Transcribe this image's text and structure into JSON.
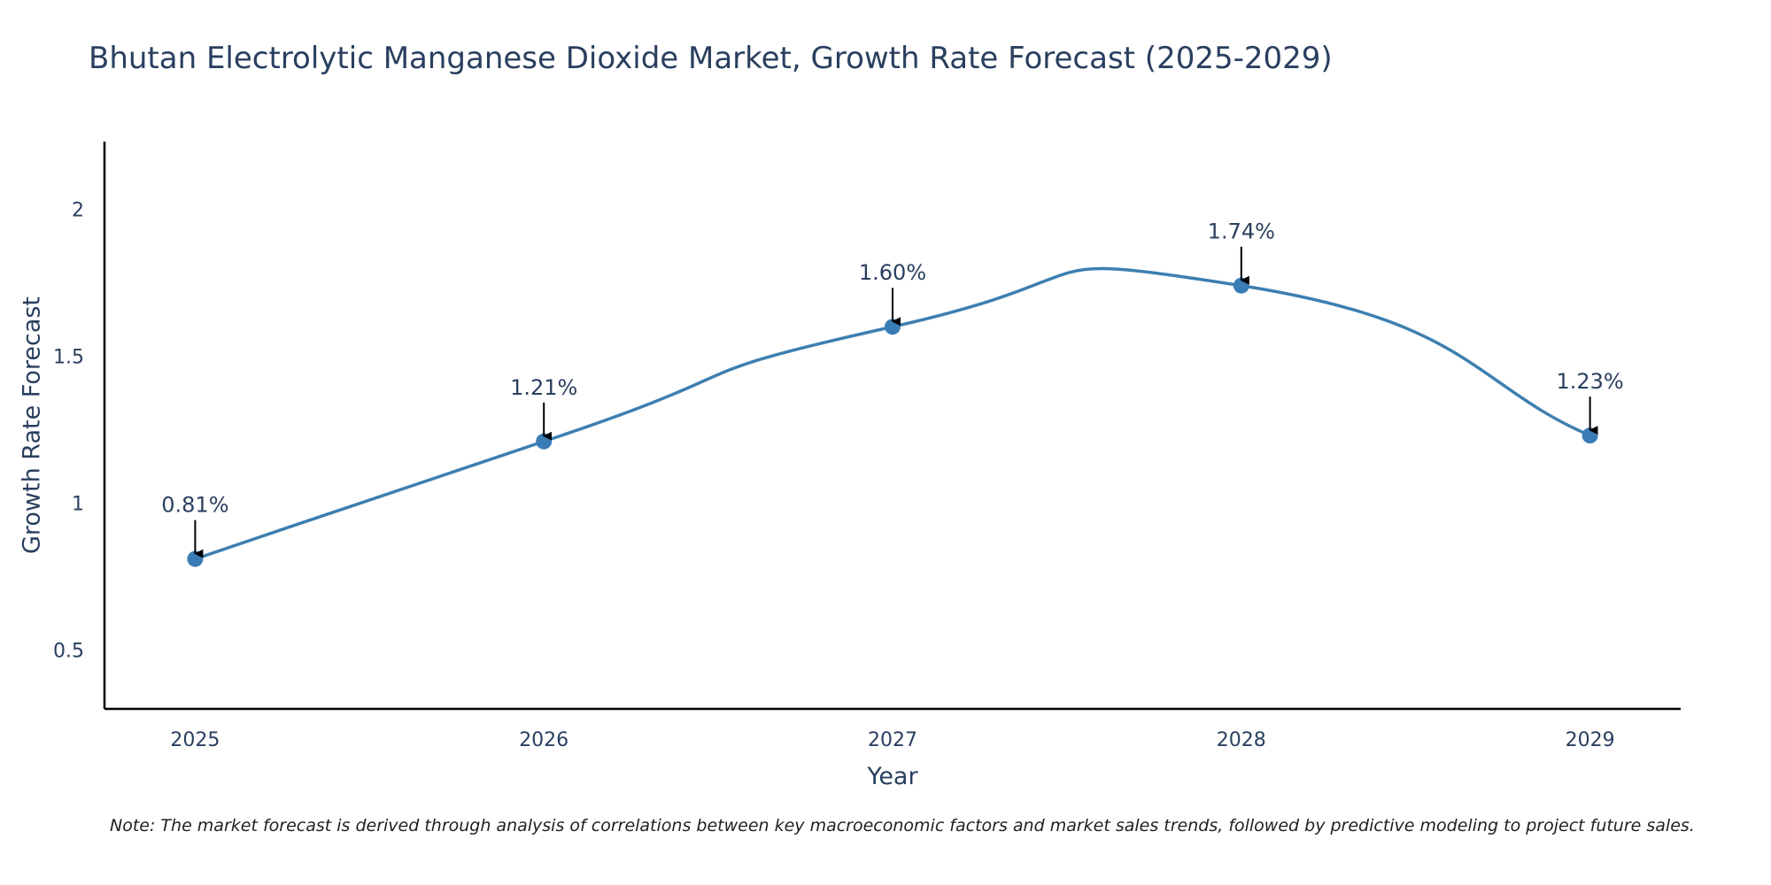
{
  "chart_data": {
    "type": "line",
    "title": "Bhutan Electrolytic Manganese Dioxide Market, Growth Rate Forecast (2025-2029)",
    "xlabel": "Year",
    "ylabel": "Growth Rate Forecast",
    "categories": [
      "2025",
      "2026",
      "2027",
      "2028",
      "2029"
    ],
    "x": [
      2025,
      2026,
      2027,
      2028,
      2029
    ],
    "values": [
      0.81,
      1.21,
      1.6,
      1.74,
      1.23
    ],
    "annotations": [
      "0.81%",
      "1.21%",
      "1.60%",
      "1.74%",
      "1.23%"
    ],
    "ylim": [
      0.3,
      2.23
    ],
    "yticks": [
      0.5,
      1,
      1.5,
      2
    ],
    "ytick_labels": [
      "0.5",
      "1",
      "1.5",
      "2"
    ],
    "xlim": [
      2024.74,
      2029.26
    ],
    "line_shape": "spline",
    "grid": false,
    "legend": "none"
  },
  "note": "Note: The market forecast is derived through analysis of correlations between key macroeconomic factors and market sales trends, followed by predictive modeling to project future sales.",
  "colors": {
    "line": "#3d7fb0",
    "marker": "#3a7cb5",
    "text": "#2a3f5f",
    "axis": "#000000",
    "arrow": "#000000"
  }
}
